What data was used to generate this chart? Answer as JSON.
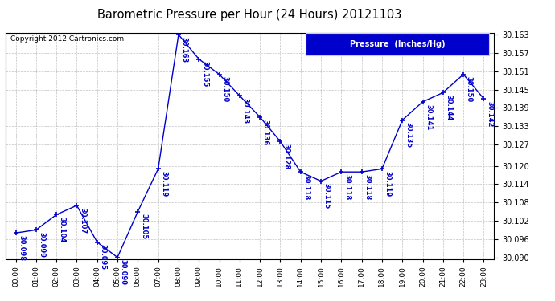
{
  "title": "Barometric Pressure per Hour (24 Hours) 20121103",
  "copyright_text": "Copyright 2012 Cartronics.com",
  "legend_text": "Pressure  (Inches/Hg)",
  "hours": [
    0,
    1,
    2,
    3,
    4,
    5,
    6,
    7,
    8,
    9,
    10,
    11,
    12,
    13,
    14,
    15,
    16,
    17,
    18,
    19,
    20,
    21,
    22,
    23
  ],
  "x_labels": [
    "00:00",
    "01:00",
    "02:00",
    "03:00",
    "04:00",
    "05:00",
    "06:00",
    "07:00",
    "08:00",
    "09:00",
    "10:00",
    "11:00",
    "12:00",
    "13:00",
    "14:00",
    "15:00",
    "16:00",
    "17:00",
    "18:00",
    "19:00",
    "20:00",
    "21:00",
    "22:00",
    "23:00"
  ],
  "values": [
    30.098,
    30.099,
    30.104,
    30.107,
    30.095,
    30.09,
    30.105,
    30.119,
    30.163,
    30.155,
    30.15,
    30.143,
    30.136,
    30.128,
    30.118,
    30.115,
    30.118,
    30.118,
    30.119,
    30.135,
    30.141,
    30.144,
    30.15,
    30.142
  ],
  "ylim_min": 30.0895,
  "ylim_max": 30.1635,
  "yticks": [
    30.09,
    30.096,
    30.102,
    30.108,
    30.114,
    30.12,
    30.127,
    30.133,
    30.139,
    30.145,
    30.151,
    30.157,
    30.163
  ],
  "line_color": "#0000cc",
  "marker_color": "#0000cc",
  "bg_color": "#ffffff",
  "grid_color": "#bbbbbb",
  "title_color": "#000000",
  "label_color": "#0000cc",
  "legend_bg": "#0000cc",
  "legend_text_color": "#ffffff"
}
